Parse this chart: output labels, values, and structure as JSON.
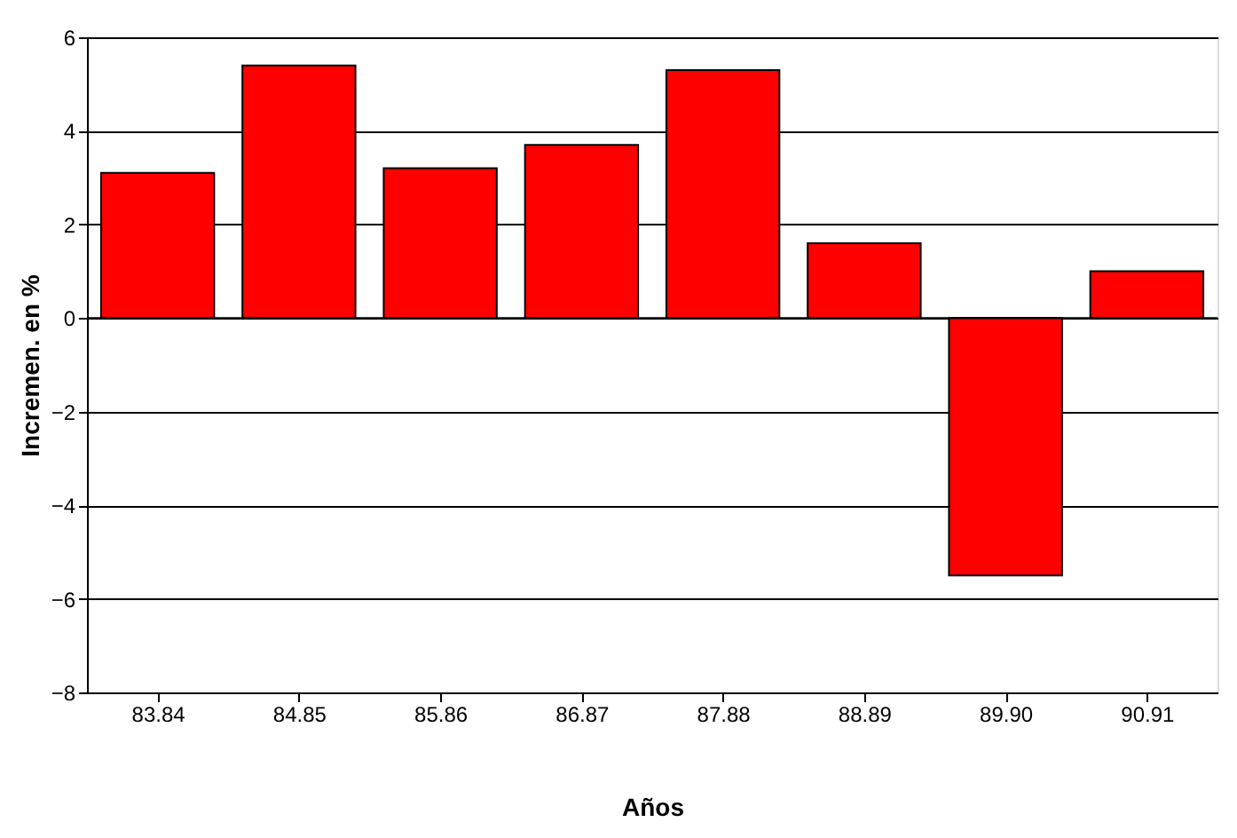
{
  "chart_data": {
    "type": "bar",
    "xlabel": "Años",
    "ylabel": "Incremen. en %",
    "categories": [
      "83.84",
      "84.85",
      "85.86",
      "86.87",
      "87.88",
      "88.89",
      "89.90",
      "90.91"
    ],
    "values": [
      3.1,
      5.4,
      3.2,
      3.7,
      5.3,
      1.6,
      -5.5,
      1.0
    ],
    "color": "#ff0000",
    "ylim": [
      -8,
      6
    ],
    "yticks": [
      -8,
      -6,
      -4,
      -2,
      0,
      2,
      4,
      6
    ],
    "grid": "y"
  }
}
